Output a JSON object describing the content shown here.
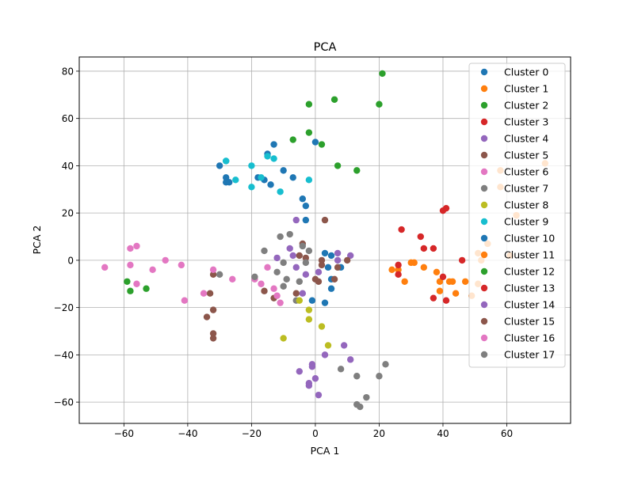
{
  "chart_data": {
    "type": "scatter",
    "title": "PCA",
    "xlabel": "PCA 1",
    "ylabel": "PCA 2",
    "xlim": [
      -74,
      80
    ],
    "ylim": [
      -69,
      86
    ],
    "xticks": [
      -60,
      -40,
      -20,
      0,
      20,
      40,
      60
    ],
    "yticks": [
      -60,
      -40,
      -20,
      0,
      20,
      40,
      60,
      80
    ],
    "xtick_labels": [
      "−60",
      "−40",
      "−20",
      "0",
      "20",
      "40",
      "60"
    ],
    "ytick_labels": [
      "−60",
      "−40",
      "−20",
      "0",
      "20",
      "40",
      "60",
      "80"
    ],
    "grid": true,
    "legend_position": "top-right",
    "series": [
      {
        "name": "Cluster 0",
        "color": "#1f77b4",
        "points": [
          [
            -30,
            40
          ],
          [
            -28,
            35
          ],
          [
            -28,
            33
          ],
          [
            -27,
            33
          ],
          [
            -18,
            35
          ],
          [
            -16,
            34
          ],
          [
            -15,
            45
          ],
          [
            -14,
            32
          ],
          [
            -13,
            49
          ],
          [
            -10,
            38
          ],
          [
            -7,
            35
          ],
          [
            -4,
            26
          ],
          [
            -3,
            23
          ],
          [
            -3,
            17
          ],
          [
            -1,
            -17
          ],
          [
            0,
            50
          ],
          [
            3,
            3
          ],
          [
            3,
            -18
          ],
          [
            4,
            -3
          ],
          [
            5,
            -8
          ],
          [
            5,
            -12
          ],
          [
            5,
            2
          ],
          [
            8,
            -3
          ]
        ]
      },
      {
        "name": "Cluster 1",
        "color": "#ff7f0e",
        "points": [
          [
            24,
            -4
          ],
          [
            26,
            -4
          ],
          [
            28,
            -9
          ],
          [
            30,
            -1
          ],
          [
            31,
            -1
          ],
          [
            34,
            -3
          ],
          [
            38,
            -5
          ],
          [
            39,
            -13
          ],
          [
            39,
            -9
          ],
          [
            42,
            -9
          ],
          [
            43,
            -9
          ],
          [
            44,
            -14
          ],
          [
            47,
            -9
          ],
          [
            49,
            -15
          ],
          [
            51,
            -10
          ],
          [
            51,
            3
          ],
          [
            52,
            0
          ],
          [
            54,
            7
          ],
          [
            58,
            38
          ],
          [
            58,
            31
          ],
          [
            61,
            2
          ],
          [
            63,
            19
          ],
          [
            72,
            41
          ]
        ]
      },
      {
        "name": "Cluster 2",
        "color": "#2ca02c",
        "points": [
          [
            -59,
            -9
          ],
          [
            -58,
            -13
          ],
          [
            -53,
            -12
          ],
          [
            -7,
            51
          ],
          [
            -2,
            66
          ],
          [
            -2,
            54
          ],
          [
            2,
            49
          ],
          [
            6,
            68
          ],
          [
            7,
            40
          ],
          [
            13,
            38
          ],
          [
            20,
            66
          ],
          [
            21,
            79
          ]
        ]
      },
      {
        "name": "Cluster 3",
        "color": "#d62728",
        "points": [
          [
            26,
            -6
          ],
          [
            26,
            -2
          ],
          [
            27,
            13
          ],
          [
            33,
            10
          ],
          [
            34,
            5
          ],
          [
            37,
            -16
          ],
          [
            37,
            5
          ],
          [
            40,
            21
          ],
          [
            40,
            -7
          ],
          [
            41,
            22
          ],
          [
            41,
            -17
          ],
          [
            46,
            0
          ]
        ]
      },
      {
        "name": "Cluster 4",
        "color": "#9467bd",
        "points": [
          [
            -12,
            1
          ],
          [
            -8,
            5
          ],
          [
            -7,
            2
          ],
          [
            -6,
            -3
          ],
          [
            -6,
            17
          ],
          [
            -5,
            -47
          ],
          [
            -4,
            -14
          ],
          [
            -3,
            -6
          ],
          [
            -2,
            -52
          ],
          [
            -2,
            -53
          ],
          [
            -1,
            -44
          ],
          [
            -1,
            -45
          ],
          [
            0,
            -50
          ],
          [
            1,
            -57
          ],
          [
            1,
            -5
          ],
          [
            3,
            -40
          ],
          [
            7,
            3
          ],
          [
            7,
            0
          ],
          [
            9,
            -36
          ],
          [
            11,
            2
          ],
          [
            11,
            -42
          ]
        ]
      },
      {
        "name": "Cluster 5",
        "color": "#8c564b",
        "points": [
          [
            -34,
            -24
          ],
          [
            -33,
            -14
          ],
          [
            -32,
            -21
          ],
          [
            -32,
            -31
          ],
          [
            -32,
            -33
          ],
          [
            -32,
            -6
          ],
          [
            -16,
            -13
          ],
          [
            -13,
            -16
          ],
          [
            -6,
            -14
          ],
          [
            -5,
            2
          ],
          [
            -4,
            7
          ],
          [
            -3,
            1
          ],
          [
            0,
            -8
          ],
          [
            1,
            -9
          ],
          [
            2,
            -2
          ],
          [
            2,
            0
          ],
          [
            3,
            17
          ],
          [
            6,
            -8
          ],
          [
            7,
            -3
          ],
          [
            10,
            0
          ]
        ]
      },
      {
        "name": "Cluster 6",
        "color": "#e377c2",
        "points": [
          [
            -66,
            -3
          ],
          [
            -58,
            5
          ],
          [
            -58,
            -2
          ],
          [
            -56,
            6
          ],
          [
            -56,
            -10
          ],
          [
            -51,
            -4
          ],
          [
            -47,
            0
          ],
          [
            -42,
            -2
          ],
          [
            -41,
            -17
          ],
          [
            -35,
            -14
          ],
          [
            -32,
            -4
          ],
          [
            -26,
            -8
          ],
          [
            -19,
            -8
          ],
          [
            -17,
            -10
          ],
          [
            -15,
            -3
          ],
          [
            -13,
            -12
          ],
          [
            -12,
            -15
          ],
          [
            -11,
            -18
          ]
        ]
      },
      {
        "name": "Cluster 7",
        "color": "#7f7f7f",
        "points": [
          [
            -30,
            -6
          ],
          [
            -19,
            -7
          ],
          [
            -16,
            4
          ],
          [
            -12,
            -5
          ],
          [
            -11,
            10
          ],
          [
            -10,
            -1
          ],
          [
            -10,
            -11
          ],
          [
            -9,
            -8
          ],
          [
            -8,
            11
          ],
          [
            -6,
            -17
          ],
          [
            -5,
            -9
          ],
          [
            -4,
            6
          ],
          [
            -3,
            -1
          ],
          [
            -2,
            4
          ],
          [
            8,
            -46
          ],
          [
            13,
            -61
          ],
          [
            13,
            -49
          ],
          [
            14,
            -62
          ],
          [
            16,
            -58
          ],
          [
            20,
            -49
          ],
          [
            22,
            -44
          ]
        ]
      },
      {
        "name": "Cluster 8",
        "color": "#bcbd22",
        "points": [
          [
            -10,
            -33
          ],
          [
            -5,
            -17
          ],
          [
            -2,
            -25
          ],
          [
            -2,
            -21
          ],
          [
            2,
            -28
          ],
          [
            4,
            -36
          ]
        ]
      },
      {
        "name": "Cluster 9",
        "color": "#17becf",
        "points": [
          [
            -28,
            42
          ],
          [
            -28,
            42
          ],
          [
            -25,
            34
          ],
          [
            -20,
            31
          ],
          [
            -20,
            40
          ],
          [
            -17,
            35
          ],
          [
            -15,
            44
          ],
          [
            -13,
            43
          ],
          [
            -11,
            29
          ],
          [
            -2,
            34
          ]
        ]
      },
      {
        "name": "Cluster 10",
        "color": "#1f77b4",
        "points": []
      },
      {
        "name": "Cluster 11",
        "color": "#ff7f0e",
        "points": []
      },
      {
        "name": "Cluster 12",
        "color": "#2ca02c",
        "points": []
      },
      {
        "name": "Cluster 13",
        "color": "#d62728",
        "points": []
      },
      {
        "name": "Cluster 14",
        "color": "#9467bd",
        "points": []
      },
      {
        "name": "Cluster 15",
        "color": "#8c564b",
        "points": []
      },
      {
        "name": "Cluster 16",
        "color": "#e377c2",
        "points": []
      },
      {
        "name": "Cluster 17",
        "color": "#7f7f7f",
        "points": []
      }
    ]
  }
}
